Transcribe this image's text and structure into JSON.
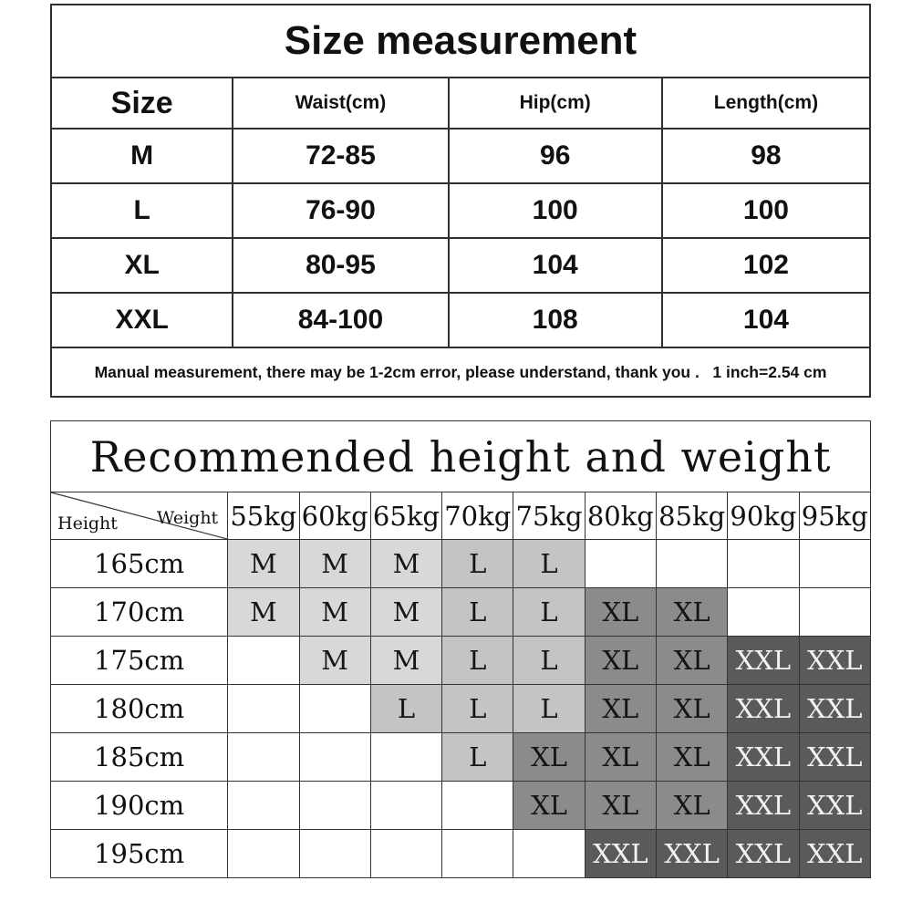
{
  "size_table": {
    "title": "Size measurement",
    "columns": [
      "Size",
      "Waist(cm)",
      "Hip(cm)",
      "Length(cm)"
    ],
    "rows": [
      {
        "size": "M",
        "waist": "72-85",
        "hip": "96",
        "length": "98"
      },
      {
        "size": "L",
        "waist": "76-90",
        "hip": "100",
        "length": "100"
      },
      {
        "size": "XL",
        "waist": "80-95",
        "hip": "104",
        "length": "102"
      },
      {
        "size": "XXL",
        "waist": "84-100",
        "hip": "108",
        "length": "104"
      }
    ],
    "note": "Manual measurement, there may be 1-2cm error, please understand, thank you .   1 inch=2.54 cm"
  },
  "recommend_table": {
    "title": "Recommended height and weight",
    "corner": {
      "row_label": "Height",
      "col_label": "Weight"
    },
    "weights": [
      "55kg",
      "60kg",
      "65kg",
      "70kg",
      "75kg",
      "80kg",
      "85kg",
      "90kg",
      "95kg"
    ],
    "heights": [
      "165cm",
      "170cm",
      "175cm",
      "180cm",
      "185cm",
      "190cm",
      "195cm"
    ],
    "matrix": [
      [
        "M",
        "M",
        "M",
        "L",
        "L",
        "",
        "",
        "",
        ""
      ],
      [
        "M",
        "M",
        "M",
        "L",
        "L",
        "XL",
        "XL",
        "",
        ""
      ],
      [
        "",
        "M",
        "M",
        "L",
        "L",
        "XL",
        "XL",
        "XXL",
        "XXL"
      ],
      [
        "",
        "",
        "L",
        "L",
        "L",
        "XL",
        "XL",
        "XXL",
        "XXL"
      ],
      [
        "",
        "",
        "",
        "L",
        "XL",
        "XL",
        "XL",
        "XXL",
        "XXL"
      ],
      [
        "",
        "",
        "",
        "",
        "XL",
        "XL",
        "XL",
        "XXL",
        "XXL"
      ],
      [
        "",
        "",
        "",
        "",
        "",
        "XXL",
        "XXL",
        "XXL",
        "XXL"
      ]
    ],
    "size_colors": {
      "M": {
        "bg": "#d8d8d8",
        "text": "#161616"
      },
      "L": {
        "bg": "#c4c4c4",
        "text": "#161616"
      },
      "XL": {
        "bg": "#8b8b8b",
        "text": "#141414"
      },
      "XXL": {
        "bg": "#5a5a5a",
        "text": "#f3f3f3"
      }
    }
  }
}
